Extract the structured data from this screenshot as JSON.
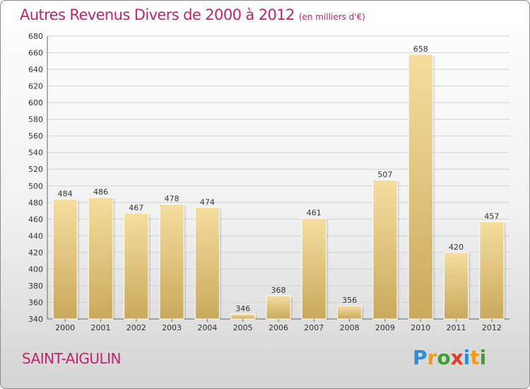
{
  "title": "Autres Revenus Divers de 2000 à 2012",
  "unit": "(en milliers d'€)",
  "place": "SAINT-AIGULIN",
  "logo": {
    "letters": [
      "P",
      "r",
      "o",
      "x",
      "i",
      "t",
      "i"
    ],
    "colors": [
      "#2a8fd6",
      "#f39b1a",
      "#3aa02f",
      "#e33b2a",
      "#2a8fd6",
      "#f39b1a",
      "#3aa02f"
    ]
  },
  "colors": {
    "title": "#c6226b",
    "bar": "#e6cc84",
    "bar_dark": "#c9a95c",
    "grid": "#d2d2d2"
  },
  "chart_data": {
    "type": "bar",
    "categories": [
      "2000",
      "2001",
      "2002",
      "2003",
      "2004",
      "2005",
      "2006",
      "2007",
      "2008",
      "2009",
      "2010",
      "2011",
      "2012"
    ],
    "values": [
      484,
      486,
      467,
      478,
      474,
      346,
      368,
      461,
      356,
      507,
      658,
      420,
      457
    ],
    "ylim": [
      340,
      680
    ],
    "yticks": [
      340,
      360,
      380,
      400,
      420,
      440,
      460,
      480,
      500,
      520,
      540,
      560,
      580,
      600,
      620,
      640,
      660,
      680
    ],
    "grid": true
  }
}
